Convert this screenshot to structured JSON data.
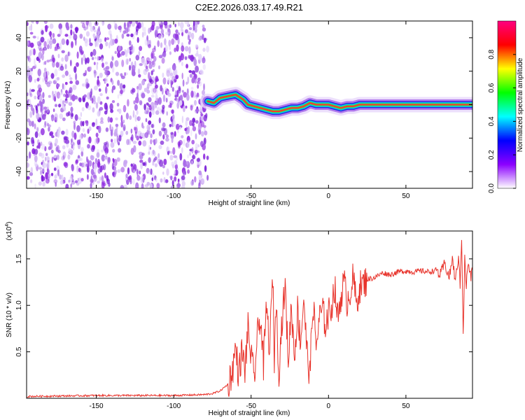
{
  "title": "C2E2.2026.033.17.49.R21",
  "colors": {
    "axis": "#000000",
    "snr_line": "#e8342c",
    "background": "#ffffff"
  },
  "chart_data": [
    {
      "type": "heatmap",
      "name": "spectrogram",
      "xlabel": "Height of straight line (km)",
      "ylabel": "Frequency (Hz)",
      "xlim": [
        -195,
        93
      ],
      "ylim": [
        -50,
        50
      ],
      "x_ticks": [
        -150,
        -100,
        -50,
        0,
        50
      ],
      "x_tick_labels": [
        "-150",
        "-100",
        "-50",
        "0",
        "50"
      ],
      "y_ticks": [
        -40,
        -20,
        0,
        20,
        40
      ],
      "y_tick_labels": [
        "-40",
        "-20",
        "0",
        "20",
        "40"
      ],
      "noise_region_x": [
        -195,
        -78
      ],
      "signal_ridge": {
        "x": [
          -78,
          -74,
          -70,
          -65,
          -60,
          -55,
          -52,
          -48,
          -44,
          -40,
          -36,
          -32,
          -28,
          -24,
          -20,
          -16,
          -12,
          -8,
          -4,
          0,
          4,
          8,
          12,
          16,
          20,
          30,
          40,
          50,
          60,
          70,
          80,
          88,
          93
        ],
        "freq": [
          2,
          1,
          4,
          5,
          6,
          3,
          0,
          -1,
          -2,
          -3,
          -4,
          -4,
          -3,
          -2,
          -2,
          -1,
          1,
          0,
          0,
          0,
          -1,
          -2,
          -1,
          -1,
          0,
          0,
          0,
          0,
          0,
          0,
          0,
          0,
          0
        ]
      },
      "colorbar": {
        "label": "Normalized spectral amplitude",
        "range": [
          0,
          1
        ],
        "ticks": [
          0.0,
          0.2,
          0.4,
          0.6,
          0.8
        ],
        "tick_labels": [
          "0.0",
          "0.2",
          "0.4",
          "0.6",
          "0.8"
        ],
        "colormap": [
          "#ffffff",
          "#8b00ff",
          "#0000ff",
          "#00ffff",
          "#00ff00",
          "#ffff00",
          "#ff0000",
          "#ff0080"
        ]
      }
    },
    {
      "type": "line",
      "name": "snr",
      "xlabel": "Height of straight line (km)",
      "ylabel": "SNR (10 * v/v)",
      "y_multiplier": "(x10",
      "y_multiplier_exp": "4",
      "y_multiplier_close": ")",
      "xlim": [
        -195,
        93
      ],
      "ylim": [
        0,
        1.8
      ],
      "x_ticks": [
        -150,
        -100,
        -50,
        0,
        50
      ],
      "x_tick_labels": [
        "-150",
        "-100",
        "-50",
        "0",
        "50"
      ],
      "y_ticks": [
        0.5,
        1.0,
        1.5
      ],
      "y_tick_labels": [
        "0.5",
        "1.0",
        "1.5"
      ],
      "series": [
        {
          "name": "SNR",
          "x": [
            -195,
            -150,
            -100,
            -80,
            -75,
            -70,
            -65,
            -62,
            -60,
            -58,
            -56,
            -54,
            -52,
            -50,
            -48,
            -46,
            -44,
            -42,
            -40,
            -38,
            -36,
            -35,
            -34,
            -32,
            -30,
            -28,
            -26,
            -24,
            -22,
            -20,
            -18,
            -16,
            -14,
            -12,
            -10,
            -8,
            -6,
            -4,
            -2,
            0,
            2,
            4,
            6,
            8,
            10,
            12,
            14,
            16,
            18,
            20,
            22,
            25,
            30,
            35,
            40,
            45,
            50,
            55,
            60,
            65,
            70,
            72,
            75,
            78,
            80,
            82,
            84,
            85,
            86,
            87,
            88,
            89,
            90,
            92,
            93
          ],
          "y": [
            0.02,
            0.03,
            0.03,
            0.04,
            0.05,
            0.08,
            0.15,
            0.3,
            0.55,
            0.25,
            0.5,
            0.3,
            0.75,
            0.45,
            0.2,
            0.65,
            0.9,
            0.35,
            1.0,
            0.5,
            1.35,
            0.4,
            1.05,
            0.3,
            0.85,
            1.2,
            0.4,
            1.0,
            0.45,
            0.95,
            0.6,
            1.1,
            0.5,
            0.25,
            1.05,
            0.55,
            0.85,
            0.95,
            0.8,
            0.9,
            1.0,
            1.2,
            0.85,
            1.1,
            1.25,
            1.05,
            1.15,
            1.3,
            1.0,
            1.2,
            1.22,
            1.28,
            1.3,
            1.35,
            1.33,
            1.36,
            1.37,
            1.36,
            1.37,
            1.36,
            1.38,
            1.32,
            1.45,
            1.3,
            1.5,
            1.25,
            1.55,
            1.2,
            1.75,
            0.7,
            1.5,
            1.2,
            1.45,
            1.3,
            1.38
          ]
        }
      ]
    }
  ]
}
